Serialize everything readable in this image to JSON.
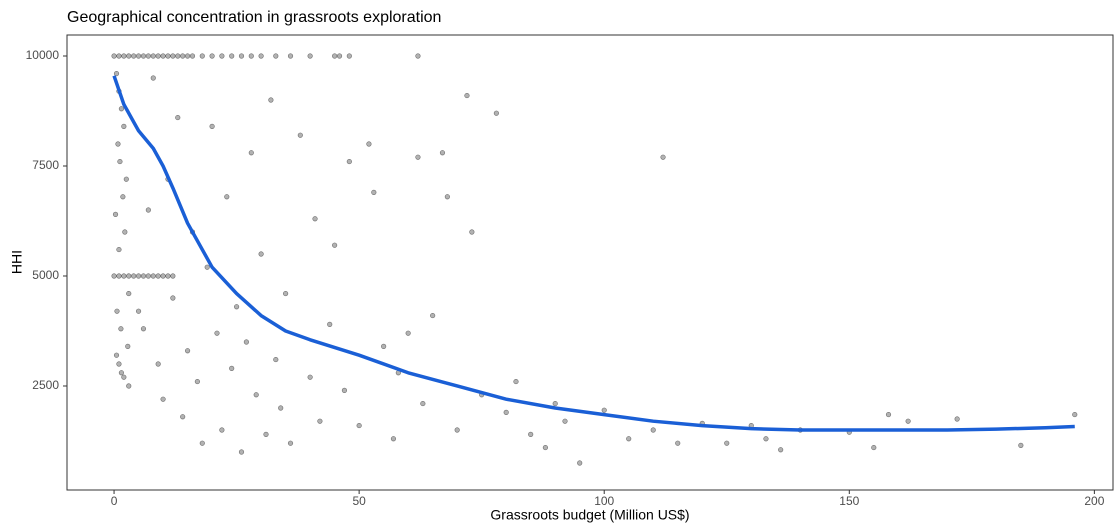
{
  "chart_data": {
    "type": "scatter",
    "title": "Geographical concentration in grassroots exploration",
    "x_label": "Grassroots budget (Million US$)",
    "y_label": "HHI",
    "xlim": [
      -9.6,
      203.8
    ],
    "ylim": [
      136,
      10477
    ],
    "xticks": [
      0,
      50,
      100,
      150,
      200
    ],
    "yticks": [
      2500,
      5000,
      7500,
      10000
    ],
    "series": [
      {
        "type": "scatter",
        "color": "#000000",
        "x": [
          0,
          1,
          2,
          3,
          4,
          5,
          6,
          7,
          8,
          9,
          10,
          11,
          12,
          13,
          14,
          15,
          16,
          18,
          20,
          22,
          24,
          26,
          28,
          30,
          33,
          36,
          40,
          45,
          46,
          48,
          62,
          0,
          1,
          2,
          3,
          4,
          5,
          6,
          7,
          8,
          9,
          10,
          11,
          12,
          0.5,
          1,
          1.5,
          2,
          0.8,
          1.2,
          2.5,
          1.8,
          0.3,
          2.2,
          1,
          3,
          0.6,
          1.4,
          2.8,
          1,
          2,
          0.5,
          3,
          1.5,
          5,
          6,
          7,
          8,
          9,
          10,
          11,
          12,
          13,
          14,
          15,
          16,
          17,
          18,
          19,
          20,
          21,
          22,
          23,
          24,
          25,
          26,
          27,
          28,
          29,
          30,
          31,
          32,
          33,
          34,
          35,
          36,
          38,
          40,
          41,
          42,
          44,
          45,
          47,
          48,
          50,
          52,
          53,
          55,
          57,
          58,
          60,
          62,
          63,
          65,
          67,
          68,
          70,
          72,
          73,
          75,
          78,
          80,
          82,
          85,
          88,
          90,
          92,
          95,
          100,
          105,
          110,
          112,
          115,
          120,
          125,
          130,
          133,
          136,
          140,
          150,
          155,
          158,
          162,
          172,
          185,
          196
        ],
        "y": [
          10000,
          10000,
          10000,
          10000,
          10000,
          10000,
          10000,
          10000,
          10000,
          10000,
          10000,
          10000,
          10000,
          10000,
          10000,
          10000,
          10000,
          10000,
          10000,
          10000,
          10000,
          10000,
          10000,
          10000,
          10000,
          10000,
          10000,
          10000,
          10000,
          10000,
          10000,
          5000,
          5000,
          5000,
          5000,
          5000,
          5000,
          5000,
          5000,
          5000,
          5000,
          5000,
          5000,
          5000,
          9600,
          9200,
          8800,
          8400,
          8000,
          7600,
          7200,
          6800,
          6400,
          6000,
          5600,
          4600,
          4200,
          3800,
          3400,
          3000,
          2700,
          3200,
          2500,
          2800,
          4200,
          3800,
          6500,
          9500,
          3000,
          2200,
          7200,
          4500,
          8600,
          1800,
          3300,
          6000,
          2600,
          1200,
          5200,
          8400,
          3700,
          1500,
          6800,
          2900,
          4300,
          1000,
          3500,
          7800,
          2300,
          5500,
          1400,
          9000,
          3100,
          2000,
          4600,
          1200,
          8200,
          2700,
          6300,
          1700,
          3900,
          5700,
          2400,
          7600,
          1600,
          8000,
          6900,
          3400,
          1300,
          2800,
          3700,
          7700,
          2100,
          4100,
          7800,
          6800,
          1500,
          9100,
          6000,
          2300,
          8700,
          1900,
          2600,
          1400,
          1100,
          2100,
          1700,
          750,
          1950,
          1300,
          1500,
          7700,
          1200,
          1650,
          1200,
          1600,
          1300,
          1050,
          1500,
          1450,
          1100,
          1850,
          1700,
          1750,
          1150,
          1850
        ]
      },
      {
        "type": "line",
        "color": "#1a5fd6",
        "x": [
          0,
          2,
          5,
          8,
          10,
          12,
          15,
          20,
          25,
          30,
          35,
          40,
          50,
          60,
          70,
          80,
          90,
          100,
          110,
          120,
          130,
          140,
          150,
          160,
          170,
          180,
          190,
          196
        ],
        "y": [
          9550,
          8900,
          8300,
          7900,
          7500,
          7000,
          6200,
          5200,
          4600,
          4100,
          3750,
          3550,
          3200,
          2800,
          2500,
          2200,
          2000,
          1850,
          1700,
          1600,
          1530,
          1500,
          1500,
          1500,
          1500,
          1520,
          1550,
          1580
        ]
      }
    ]
  }
}
